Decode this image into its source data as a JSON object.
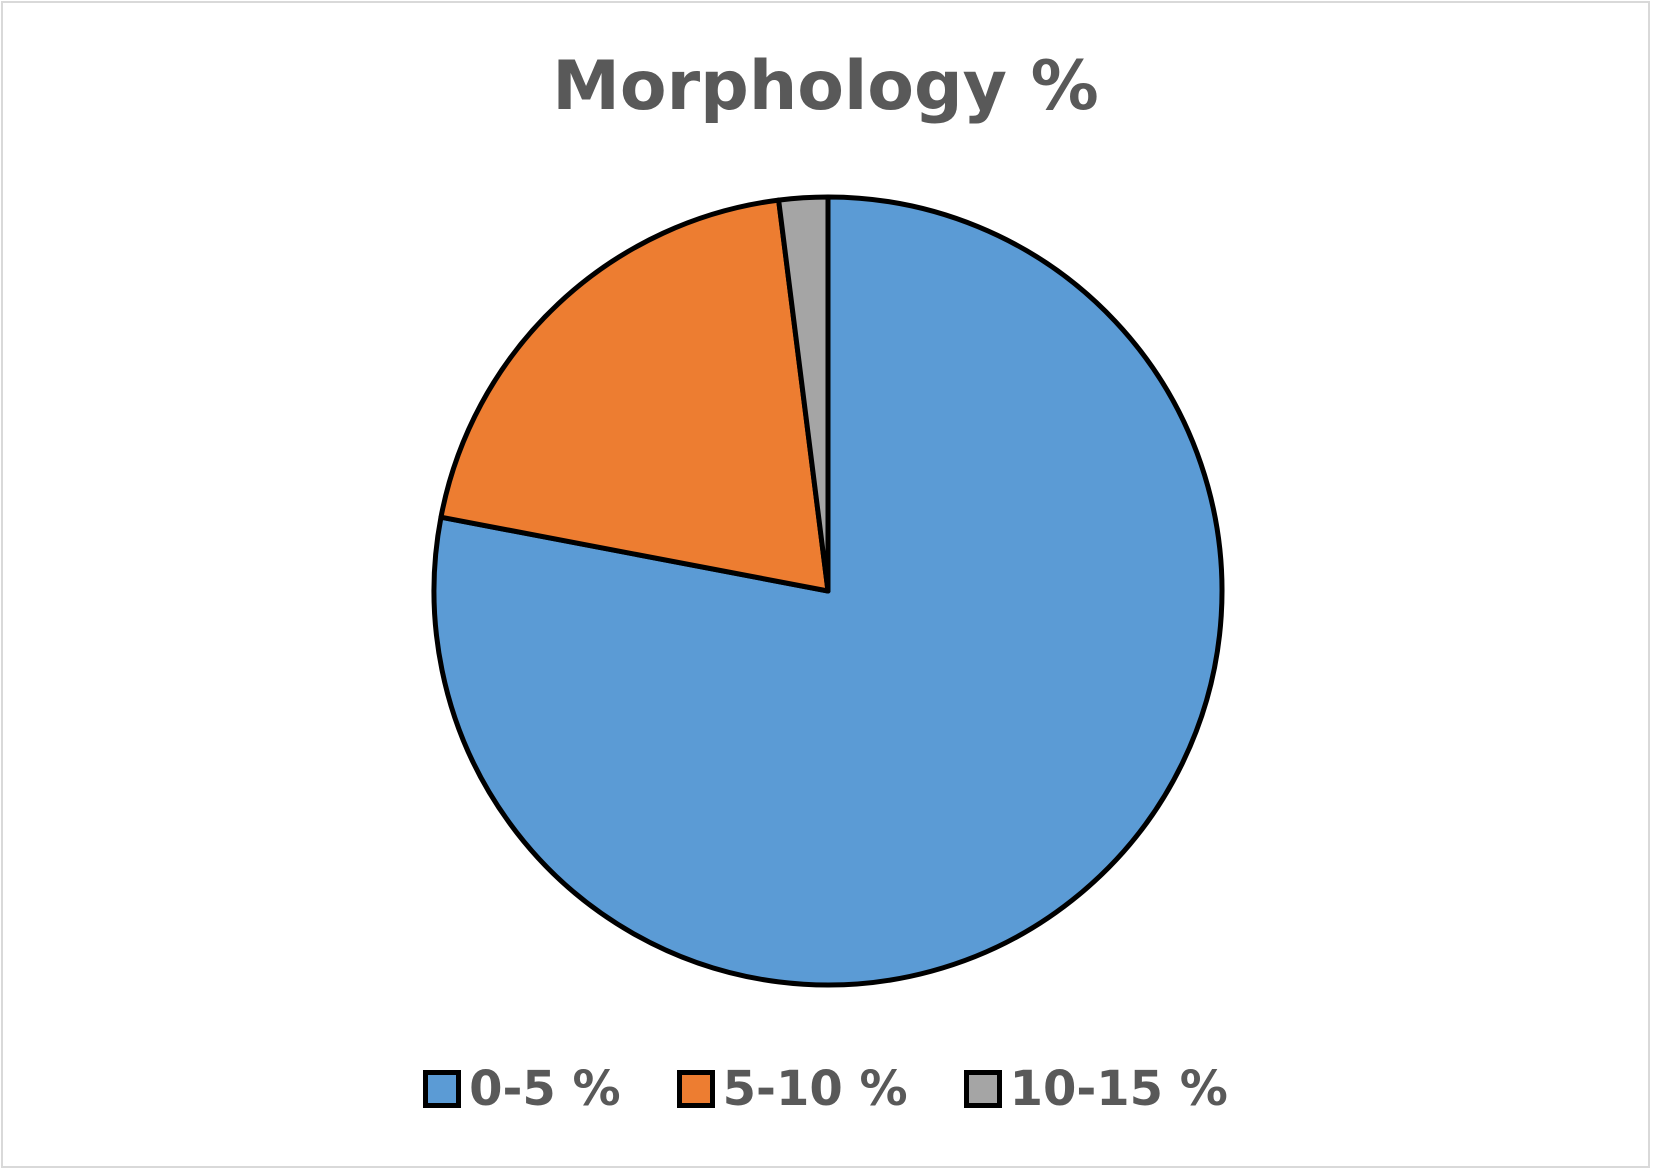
{
  "chart_data": {
    "type": "pie",
    "title": "Morphology %",
    "categories": [
      "0-5 %",
      "5-10 %",
      "10-15 %"
    ],
    "values": [
      78,
      20,
      2
    ],
    "colors": [
      "#5B9BD5",
      "#ED7D31",
      "#A5A5A5"
    ],
    "start_angle": "top, clockwise",
    "legend": "bottom"
  },
  "colors": {
    "slice_border": "#000000",
    "text": "#595959",
    "frame_border": "#d9d9d9"
  }
}
